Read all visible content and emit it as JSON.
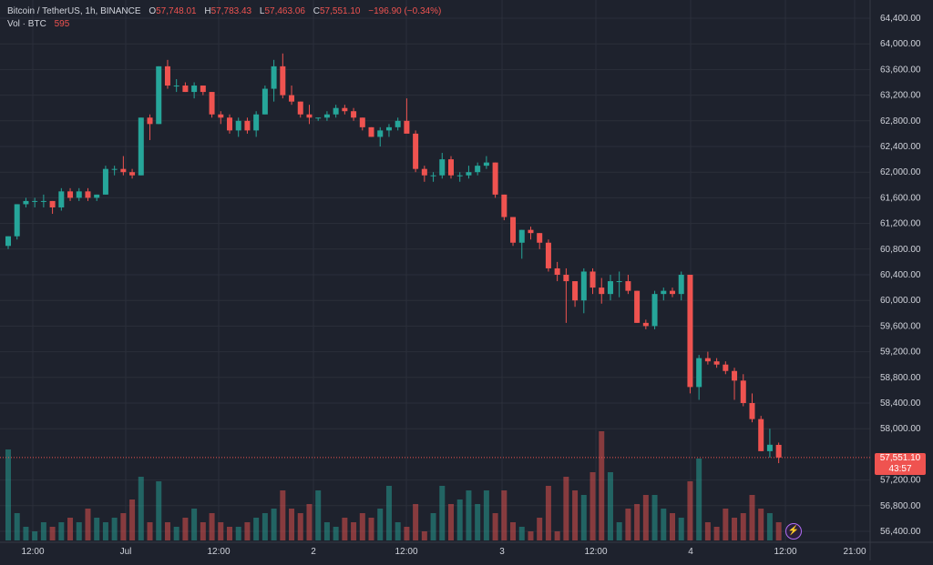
{
  "legend": {
    "symbol": "Bitcoin / TetherUS, 1h, BINANCE",
    "open_label": "O",
    "open": "57,748.01",
    "high_label": "H",
    "high": "57,783.43",
    "low_label": "L",
    "low": "57,463.06",
    "close_label": "C",
    "close": "57,551.10",
    "change": "−196.90 (−0.34%)",
    "volume_label": "Vol · BTC",
    "volume": "595"
  },
  "price_axis": {
    "labels": [
      "64,400.00",
      "64,000.00",
      "63,600.00",
      "63,200.00",
      "62,800.00",
      "62,400.00",
      "62,000.00",
      "61,600.00",
      "61,200.00",
      "60,800.00",
      "60,400.00",
      "60,000.00",
      "59,600.00",
      "59,200.00",
      "58,800.00",
      "58,400.00",
      "58,000.00",
      "57,200.00",
      "56,800.00",
      "56,400.00"
    ],
    "values": [
      64400,
      64000,
      63600,
      63200,
      62800,
      62400,
      62000,
      61600,
      61200,
      60800,
      60400,
      60000,
      59600,
      59200,
      58800,
      58400,
      58000,
      57200,
      56800,
      56400
    ]
  },
  "time_axis": {
    "labels": [
      "12:00",
      "Jul",
      "12:00",
      "2",
      "12:00",
      "3",
      "12:00",
      "4",
      "12:00",
      "21:00"
    ]
  },
  "last_price": {
    "price": "57,551.10",
    "countdown": "43:57"
  },
  "colors": {
    "up": "#26a69a",
    "down": "#ef5350",
    "up_volume": "#26a69a80",
    "down_volume": "#ef535080",
    "grid": "#2b2f3a",
    "background": "#1e222d",
    "axis_text": "#d1d4dc"
  },
  "icons": {
    "lightning": "lightning-icon"
  },
  "chart_data": {
    "type": "candlestick",
    "candles": [
      [
        60850,
        61000,
        60800,
        61000
      ],
      [
        61000,
        61500,
        60950,
        61500
      ],
      [
        61500,
        61600,
        61450,
        61550
      ],
      [
        61550,
        61600,
        61450,
        61550
      ],
      [
        61550,
        61650,
        61450,
        61550
      ],
      [
        61550,
        61550,
        61350,
        61450
      ],
      [
        61450,
        61750,
        61400,
        61700
      ],
      [
        61700,
        61750,
        61550,
        61600
      ],
      [
        61600,
        61750,
        61550,
        61700
      ],
      [
        61700,
        61750,
        61550,
        61600
      ],
      [
        61600,
        61650,
        61550,
        61650
      ],
      [
        61650,
        62100,
        61650,
        62050
      ],
      [
        62050,
        62100,
        61950,
        62050
      ],
      [
        62050,
        62250,
        61950,
        62000
      ],
      [
        62000,
        62050,
        61900,
        61950
      ],
      [
        61950,
        62850,
        61950,
        62850
      ],
      [
        62850,
        62900,
        62500,
        62750
      ],
      [
        62750,
        63650,
        62750,
        63650
      ],
      [
        63650,
        63750,
        63300,
        63350
      ],
      [
        63350,
        63450,
        63250,
        63350
      ],
      [
        63350,
        63400,
        63250,
        63250
      ],
      [
        63250,
        63400,
        63150,
        63350
      ],
      [
        63350,
        63350,
        63200,
        63250
      ],
      [
        63250,
        63250,
        62850,
        62900
      ],
      [
        62900,
        62950,
        62750,
        62850
      ],
      [
        62850,
        62900,
        62600,
        62650
      ],
      [
        62650,
        62850,
        62550,
        62800
      ],
      [
        62800,
        62850,
        62600,
        62650
      ],
      [
        62650,
        62950,
        62550,
        62900
      ],
      [
        62900,
        63350,
        62900,
        63300
      ],
      [
        63300,
        63750,
        63100,
        63650
      ],
      [
        63650,
        63850,
        63150,
        63200
      ],
      [
        63200,
        63350,
        63050,
        63100
      ],
      [
        63100,
        63100,
        62850,
        62900
      ],
      [
        62900,
        63050,
        62750,
        62850
      ],
      [
        62850,
        62850,
        62800,
        62850
      ],
      [
        62850,
        62950,
        62800,
        62900
      ],
      [
        62900,
        63050,
        62850,
        63000
      ],
      [
        63000,
        63050,
        62900,
        62950
      ],
      [
        62950,
        63000,
        62800,
        62850
      ],
      [
        62850,
        62850,
        62650,
        62700
      ],
      [
        62700,
        62700,
        62550,
        62550
      ],
      [
        62550,
        62700,
        62400,
        62650
      ],
      [
        62650,
        62750,
        62550,
        62700
      ],
      [
        62700,
        62850,
        62650,
        62800
      ],
      [
        62800,
        63150,
        62650,
        62600
      ],
      [
        62600,
        62650,
        62000,
        62050
      ],
      [
        62050,
        62100,
        61850,
        61950
      ],
      [
        61950,
        62000,
        61850,
        61950
      ],
      [
        61950,
        62300,
        61900,
        62200
      ],
      [
        62200,
        62250,
        61900,
        61950
      ],
      [
        61950,
        62000,
        61850,
        61950
      ],
      [
        61950,
        62100,
        61900,
        62000
      ],
      [
        62000,
        62150,
        61950,
        62100
      ],
      [
        62100,
        62250,
        62050,
        62150
      ],
      [
        62150,
        62150,
        61600,
        61650
      ],
      [
        61650,
        61650,
        61250,
        61300
      ],
      [
        61300,
        61300,
        60850,
        60900
      ],
      [
        60900,
        61100,
        60650,
        61100
      ],
      [
        61100,
        61150,
        60950,
        61050
      ],
      [
        61050,
        61050,
        60800,
        60900
      ],
      [
        60900,
        60950,
        60450,
        60500
      ],
      [
        60500,
        60600,
        60300,
        60400
      ],
      [
        60400,
        60500,
        59650,
        60300
      ],
      [
        60300,
        60300,
        59900,
        60000
      ],
      [
        60000,
        60500,
        59800,
        60450
      ],
      [
        60450,
        60500,
        60100,
        60200
      ],
      [
        60200,
        60350,
        59950,
        60100
      ],
      [
        60100,
        60400,
        60000,
        60300
      ],
      [
        60300,
        60450,
        60050,
        60300
      ],
      [
        60300,
        60400,
        60100,
        60150
      ],
      [
        60150,
        60150,
        59650,
        59650
      ],
      [
        59650,
        59700,
        59550,
        59600
      ],
      [
        59600,
        60150,
        59550,
        60100
      ],
      [
        60100,
        60200,
        60000,
        60150
      ],
      [
        60150,
        60200,
        60050,
        60100
      ],
      [
        60100,
        60450,
        60000,
        60400
      ],
      [
        60400,
        60400,
        58550,
        58650
      ],
      [
        58650,
        59150,
        58450,
        59100
      ],
      [
        59100,
        59200,
        59000,
        59050
      ],
      [
        59050,
        59100,
        58950,
        59000
      ],
      [
        59000,
        59050,
        58850,
        58900
      ],
      [
        58900,
        58950,
        58450,
        58750
      ],
      [
        58750,
        58850,
        58350,
        58400
      ],
      [
        58400,
        58550,
        58100,
        58150
      ],
      [
        58150,
        58200,
        57650,
        57650
      ],
      [
        57650,
        58000,
        57550,
        57750
      ],
      [
        57748.01,
        57783.43,
        57463.06,
        57551.1
      ]
    ],
    "volume": [
      40,
      12,
      6,
      4,
      8,
      6,
      8,
      10,
      8,
      14,
      10,
      8,
      10,
      12,
      18,
      28,
      8,
      26,
      8,
      6,
      10,
      14,
      8,
      12,
      8,
      6,
      6,
      8,
      10,
      12,
      14,
      22,
      14,
      12,
      16,
      22,
      8,
      6,
      10,
      8,
      12,
      10,
      14,
      24,
      8,
      6,
      16,
      4,
      12,
      24,
      16,
      18,
      22,
      16,
      22,
      12,
      22,
      8,
      6,
      4,
      10,
      24,
      4,
      28,
      22,
      20,
      30,
      48,
      30,
      8,
      14,
      16,
      20,
      20,
      14,
      12,
      10,
      26,
      36,
      8,
      6,
      14,
      10,
      12,
      20,
      14,
      12,
      8
    ]
  }
}
